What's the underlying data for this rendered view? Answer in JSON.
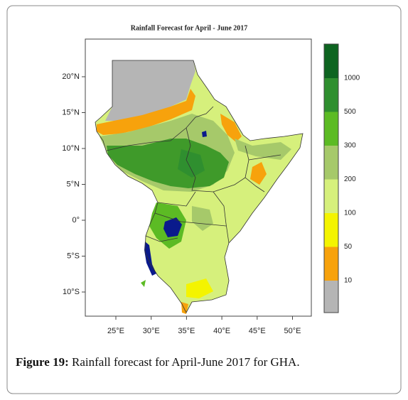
{
  "title": "Rainfall Forecast for April - June 2017",
  "y_axis": {
    "ticks": [
      {
        "value": 20,
        "label": "20°N"
      },
      {
        "value": 15,
        "label": "15°N"
      },
      {
        "value": 10,
        "label": "10°N"
      },
      {
        "value": 5,
        "label": "5°N"
      },
      {
        "value": 0,
        "label": "0°"
      },
      {
        "value": -5,
        "label": "5°S"
      },
      {
        "value": -10,
        "label": "10°S"
      }
    ]
  },
  "x_axis": {
    "ticks": [
      {
        "value": 25,
        "label": "25°E"
      },
      {
        "value": 30,
        "label": "30°E"
      },
      {
        "value": 35,
        "label": "35°E"
      },
      {
        "value": 40,
        "label": "40°E"
      },
      {
        "value": 45,
        "label": "45°E"
      },
      {
        "value": 50,
        "label": "50°E"
      }
    ]
  },
  "legend": {
    "labels": [
      1000,
      500,
      300,
      200,
      100,
      50,
      10
    ],
    "colors": [
      "#0d6420",
      "#2f8f2f",
      "#5cbb24",
      "#a6c96a",
      "#d6f07c",
      "#f4f400",
      "#f7a20c",
      "#b5b5b5"
    ]
  },
  "caption": {
    "label": "Figure 19:",
    "text": "Rainfall forecast for April-June 2017 for GHA."
  }
}
